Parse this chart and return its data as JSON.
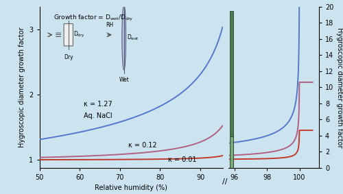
{
  "background_color": "#cce4f0",
  "plot_bg_color": "#cce4f0",
  "xlabel": "Relative humidity (%)",
  "ylabel_left": "Hygroscopic diameter growth factor",
  "ylabel_right": "Hygroscopic diameter growth factor",
  "xlim_left": [
    50,
    95.6
  ],
  "xlim_right": [
    95.6,
    101.2
  ],
  "ylim_left": [
    0.88,
    3.35
  ],
  "ylim_right": [
    0,
    20
  ],
  "xticks_left": [
    50,
    60,
    70,
    80,
    90
  ],
  "xticks_right": [
    96,
    98,
    100
  ],
  "yticks_left": [
    1.0,
    2.0,
    3.0
  ],
  "yticks_right": [
    0,
    2,
    4,
    6,
    8,
    10,
    12,
    14,
    16,
    18,
    20
  ],
  "kappas": [
    0.01,
    0.12,
    1.27
  ],
  "colors": [
    "#c0392b",
    "#b06080",
    "#5577cc"
  ],
  "label_kappa_01": "κ = 0.01",
  "label_kappa_012": "κ = 0.12",
  "label_kappa_127": "κ = 1.27",
  "label_nacl": "Aq. NaCl",
  "axis_fontsize": 7,
  "tick_fontsize": 7,
  "spike_color": "#4a7a4a",
  "spike_edge": "#2c3e2c"
}
